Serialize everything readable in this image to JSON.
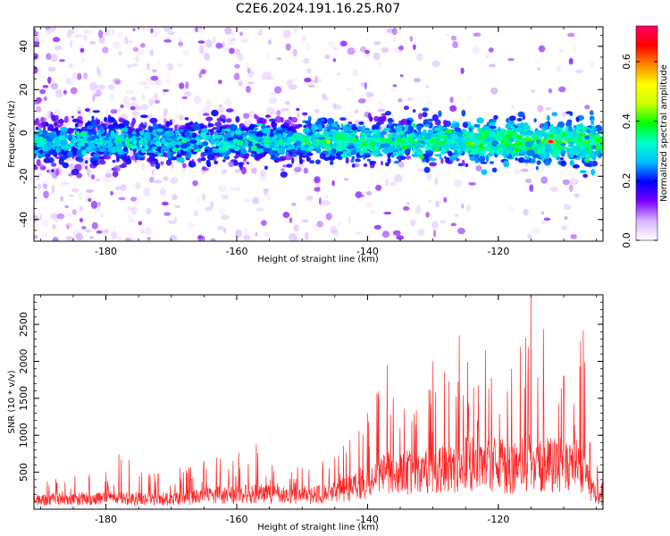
{
  "figure": {
    "title": "C2E6.2024.191.16.25.R07"
  },
  "chart_data": [
    {
      "type": "heatmap",
      "xlabel": "Height of straight line (km)",
      "ylabel": "Frequency (Hz)",
      "xlim": [
        -191,
        -104
      ],
      "ylim": [
        -50,
        49
      ],
      "x_ticks": [
        -180,
        -160,
        -140,
        -120
      ],
      "y_ticks": [
        -40,
        -20,
        0,
        20,
        40
      ],
      "band_center_hz": -4,
      "band_halfwidth_hz": 9,
      "peak": {
        "x": -112,
        "y": -4,
        "value": 0.72
      },
      "colorbar": {
        "label": "Normalized spectral amplitude",
        "range": [
          0,
          0.72
        ],
        "ticks": [
          0.0,
          0.2,
          0.4,
          0.6
        ],
        "colors": [
          "#ffffff",
          "#d9b3ff",
          "#7a00ff",
          "#0000ff",
          "#00bfff",
          "#00ffcc",
          "#00ff00",
          "#ccff00",
          "#ffff00",
          "#ff8800",
          "#ff0000",
          "#ff0066"
        ]
      }
    },
    {
      "type": "line",
      "xlabel": "Height of straight line (km)",
      "ylabel": "SNR (10 * v/v)",
      "xlim": [
        -191,
        -104
      ],
      "ylim": [
        0,
        2900
      ],
      "x_ticks": [
        -180,
        -160,
        -140,
        -120
      ],
      "y_ticks": [
        500,
        1000,
        1500,
        2000,
        2500
      ],
      "color": "#ff0000",
      "envelope": [
        {
          "x": -191,
          "base": 180,
          "peak": 450
        },
        {
          "x": -180,
          "base": 200,
          "peak": 500
        },
        {
          "x": -178,
          "base": 220,
          "peak": 740
        },
        {
          "x": -172,
          "base": 180,
          "peak": 480
        },
        {
          "x": -165,
          "base": 260,
          "peak": 650
        },
        {
          "x": -157,
          "base": 300,
          "peak": 880
        },
        {
          "x": -150,
          "base": 250,
          "peak": 560
        },
        {
          "x": -145,
          "base": 320,
          "peak": 700
        },
        {
          "x": -140,
          "base": 500,
          "peak": 1300
        },
        {
          "x": -137,
          "base": 700,
          "peak": 1950
        },
        {
          "x": -130,
          "base": 750,
          "peak": 2000
        },
        {
          "x": -126,
          "base": 850,
          "peak": 2350
        },
        {
          "x": -122,
          "base": 900,
          "peak": 2150
        },
        {
          "x": -118,
          "base": 800,
          "peak": 1900
        },
        {
          "x": -115,
          "base": 900,
          "peak": 2890
        },
        {
          "x": -110,
          "base": 850,
          "peak": 1800
        },
        {
          "x": -107,
          "base": 800,
          "peak": 2420
        },
        {
          "x": -106,
          "base": 400,
          "peak": 900
        },
        {
          "x": -104,
          "base": 150,
          "peak": 350
        }
      ]
    }
  ]
}
